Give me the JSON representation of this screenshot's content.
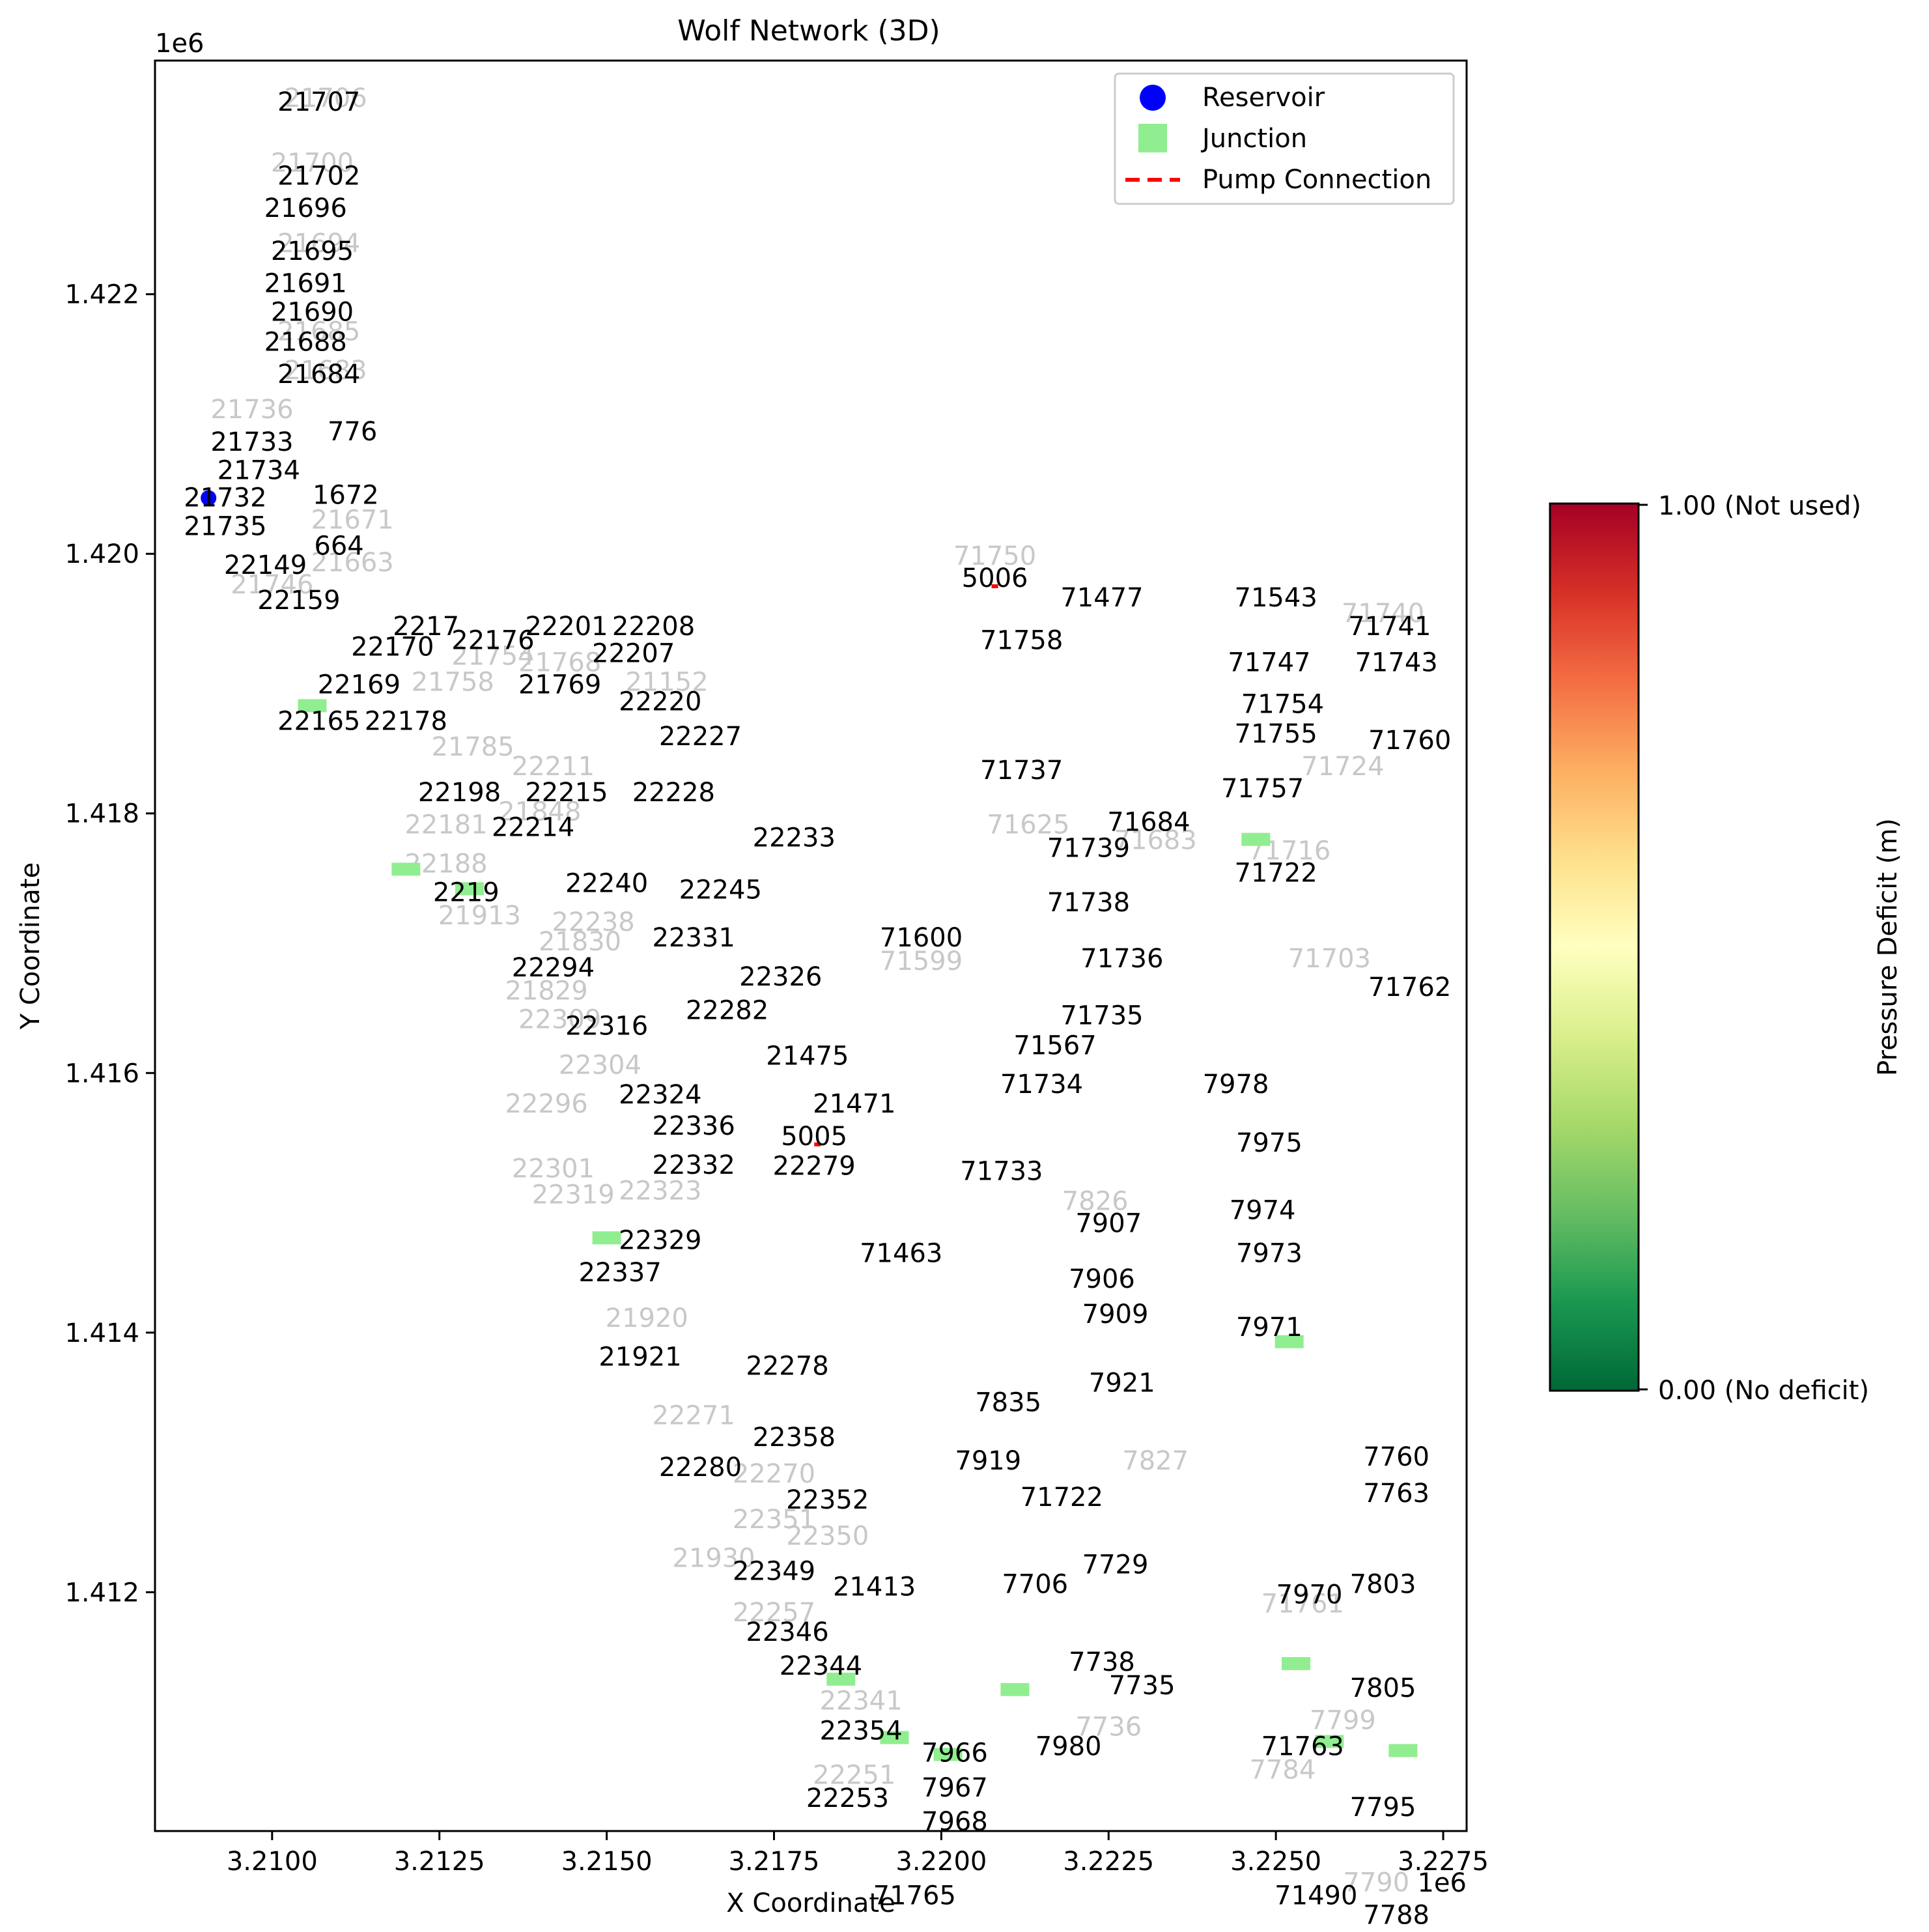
{
  "chart_data": {
    "type": "scatter",
    "title": "Wolf Network (3D)",
    "xlabel": "X Coordinate",
    "ylabel": "Y Coordinate",
    "x_offset_label": "1e6",
    "y_offset_label": "1e6",
    "xlim": [
      3.20825,
      3.22785
    ],
    "ylim": [
      1.41016,
      1.4238
    ],
    "x_ticks": [
      3.21,
      3.2125,
      3.215,
      3.2175,
      3.22,
      3.2225,
      3.225,
      3.2275
    ],
    "x_tick_labels": [
      "3.2100",
      "3.2125",
      "3.2150",
      "3.2175",
      "3.2200",
      "3.2225",
      "3.2250",
      "3.2275"
    ],
    "y_ticks": [
      1.412,
      1.414,
      1.416,
      1.418,
      1.42,
      1.422
    ],
    "y_tick_labels": [
      "1.412",
      "1.414",
      "1.416",
      "1.418",
      "1.420",
      "1.422"
    ],
    "grid": false,
    "legend_position": "upper right",
    "legend": [
      {
        "label": "Reservoir",
        "marker": "circle",
        "color": "#0000ff"
      },
      {
        "label": "Junction",
        "marker": "square",
        "color": "#90ee90"
      },
      {
        "label": "Pump Connection",
        "marker": "dashed-line",
        "color": "#ff0000"
      }
    ],
    "colorbar": {
      "label": "Pressure Deficit (m)",
      "min": 0.0,
      "max": 1.0,
      "tick_labels": [
        "1.00 (Not used)",
        "0.00 (No deficit)"
      ],
      "colormap": "RdYlGn_r",
      "stops": [
        "#006837",
        "#1a9850",
        "#66bd63",
        "#a6d96a",
        "#d9ef8b",
        "#ffffbf",
        "#fee08b",
        "#fdae61",
        "#f46d43",
        "#d73027",
        "#a50026"
      ]
    },
    "reservoirs": [
      {
        "label": "22149",
        "x": 3.20905,
        "y": 1.42043
      }
    ],
    "pump_connections": [
      {
        "label": "5006",
        "x": 3.2208,
        "y": 1.41975
      },
      {
        "label": "5005",
        "x": 3.21815,
        "y": 1.41545
      }
    ],
    "junction_markers": [
      {
        "x": 3.2106,
        "y": 1.41883
      },
      {
        "x": 3.212,
        "y": 1.41757
      },
      {
        "x": 3.21295,
        "y": 1.41742
      },
      {
        "x": 3.215,
        "y": 1.41473
      },
      {
        "x": 3.2185,
        "y": 1.41133
      },
      {
        "x": 3.2193,
        "y": 1.41088
      },
      {
        "x": 3.2201,
        "y": 1.41075
      },
      {
        "x": 3.2211,
        "y": 1.41125
      },
      {
        "x": 3.2247,
        "y": 1.4178
      },
      {
        "x": 3.2252,
        "y": 1.41393
      },
      {
        "x": 3.2258,
        "y": 1.41085
      },
      {
        "x": 3.2269,
        "y": 1.41078
      },
      {
        "x": 3.2253,
        "y": 1.41145
      }
    ],
    "node_labels": [
      {
        "t": "21707",
        "x": 3.2107,
        "y": 1.42347
      },
      {
        "t": "21702",
        "x": 3.2107,
        "y": 1.4229
      },
      {
        "t": "21696",
        "x": 3.2105,
        "y": 1.42265
      },
      {
        "t": "21695",
        "x": 3.2106,
        "y": 1.42232
      },
      {
        "t": "21691",
        "x": 3.2105,
        "y": 1.42207
      },
      {
        "t": "21690",
        "x": 3.2106,
        "y": 1.42185
      },
      {
        "t": "21688",
        "x": 3.2105,
        "y": 1.42162
      },
      {
        "t": "21684",
        "x": 3.2107,
        "y": 1.42137
      },
      {
        "t": "21733",
        "x": 3.2097,
        "y": 1.42085
      },
      {
        "t": "776",
        "x": 3.2112,
        "y": 1.42093
      },
      {
        "t": "21734",
        "x": 3.2098,
        "y": 1.42063
      },
      {
        "t": "21732",
        "x": 3.2093,
        "y": 1.42042
      },
      {
        "t": "1672",
        "x": 3.2111,
        "y": 1.42044
      },
      {
        "t": "21735",
        "x": 3.2093,
        "y": 1.4202
      },
      {
        "t": "664",
        "x": 3.211,
        "y": 1.42005
      },
      {
        "t": "22149",
        "x": 3.2099,
        "y": 1.4199
      },
      {
        "t": "22159",
        "x": 3.2104,
        "y": 1.41963
      },
      {
        "t": "22170",
        "x": 3.2118,
        "y": 1.41927
      },
      {
        "t": "2217",
        "x": 3.2123,
        "y": 1.41943
      },
      {
        "t": "22176",
        "x": 3.2133,
        "y": 1.41932
      },
      {
        "t": "22201",
        "x": 3.2144,
        "y": 1.41943
      },
      {
        "t": "22208",
        "x": 3.2157,
        "y": 1.41943
      },
      {
        "t": "22207",
        "x": 3.2154,
        "y": 1.41922
      },
      {
        "t": "22169",
        "x": 3.2113,
        "y": 1.41898
      },
      {
        "t": "21769",
        "x": 3.2143,
        "y": 1.41898
      },
      {
        "t": "22220",
        "x": 3.2158,
        "y": 1.41885
      },
      {
        "t": "22165",
        "x": 3.2107,
        "y": 1.4187
      },
      {
        "t": "22178",
        "x": 3.212,
        "y": 1.4187
      },
      {
        "t": "22227",
        "x": 3.2164,
        "y": 1.41858
      },
      {
        "t": "22198",
        "x": 3.2128,
        "y": 1.41815
      },
      {
        "t": "22215",
        "x": 3.2144,
        "y": 1.41815
      },
      {
        "t": "22228",
        "x": 3.216,
        "y": 1.41815
      },
      {
        "t": "22214",
        "x": 3.2139,
        "y": 1.41788
      },
      {
        "t": "22233",
        "x": 3.2178,
        "y": 1.4178
      },
      {
        "t": "22240",
        "x": 3.215,
        "y": 1.41745
      },
      {
        "t": "22245",
        "x": 3.2167,
        "y": 1.4174
      },
      {
        "t": "2219",
        "x": 3.2129,
        "y": 1.41738
      },
      {
        "t": "22331",
        "x": 3.2163,
        "y": 1.41703
      },
      {
        "t": "22294",
        "x": 3.2142,
        "y": 1.4168
      },
      {
        "t": "22326",
        "x": 3.2176,
        "y": 1.41673
      },
      {
        "t": "22282",
        "x": 3.2168,
        "y": 1.41647
      },
      {
        "t": "22316",
        "x": 3.215,
        "y": 1.41635
      },
      {
        "t": "21475",
        "x": 3.218,
        "y": 1.41612
      },
      {
        "t": "22324",
        "x": 3.2158,
        "y": 1.41582
      },
      {
        "t": "21471",
        "x": 3.2187,
        "y": 1.41575
      },
      {
        "t": "22336",
        "x": 3.2163,
        "y": 1.41558
      },
      {
        "t": "22279",
        "x": 3.2181,
        "y": 1.41527
      },
      {
        "t": "22332",
        "x": 3.2163,
        "y": 1.41528
      },
      {
        "t": "22329",
        "x": 3.2158,
        "y": 1.4147
      },
      {
        "t": "22337",
        "x": 3.2152,
        "y": 1.41445
      },
      {
        "t": "21921",
        "x": 3.2155,
        "y": 1.4138
      },
      {
        "t": "22278",
        "x": 3.2177,
        "y": 1.41373
      },
      {
        "t": "22358",
        "x": 3.2178,
        "y": 1.41318
      },
      {
        "t": "22280",
        "x": 3.2164,
        "y": 1.41295
      },
      {
        "t": "22352",
        "x": 3.2183,
        "y": 1.4127
      },
      {
        "t": "22349",
        "x": 3.2175,
        "y": 1.41215
      },
      {
        "t": "21413",
        "x": 3.219,
        "y": 1.41203
      },
      {
        "t": "22346",
        "x": 3.2177,
        "y": 1.41168
      },
      {
        "t": "22344",
        "x": 3.2182,
        "y": 1.41142
      },
      {
        "t": "22354",
        "x": 3.2188,
        "y": 1.41092
      },
      {
        "t": "22253",
        "x": 3.2186,
        "y": 1.4104
      },
      {
        "t": "5006",
        "x": 3.2208,
        "y": 1.4198
      },
      {
        "t": "71477",
        "x": 3.2224,
        "y": 1.41965
      },
      {
        "t": "71543",
        "x": 3.225,
        "y": 1.41965
      },
      {
        "t": "71758",
        "x": 3.2212,
        "y": 1.41932
      },
      {
        "t": "71741",
        "x": 3.2267,
        "y": 1.41943
      },
      {
        "t": "71747",
        "x": 3.2249,
        "y": 1.41915
      },
      {
        "t": "71743",
        "x": 3.2268,
        "y": 1.41915
      },
      {
        "t": "71754",
        "x": 3.2251,
        "y": 1.41883
      },
      {
        "t": "71755",
        "x": 3.225,
        "y": 1.4186
      },
      {
        "t": "71760",
        "x": 3.227,
        "y": 1.41855
      },
      {
        "t": "71737",
        "x": 3.2212,
        "y": 1.41832
      },
      {
        "t": "71757",
        "x": 3.2248,
        "y": 1.41818
      },
      {
        "t": "71684",
        "x": 3.2231,
        "y": 1.41792
      },
      {
        "t": "71739",
        "x": 3.2222,
        "y": 1.41772
      },
      {
        "t": "71722",
        "x": 3.225,
        "y": 1.41753
      },
      {
        "t": "71738",
        "x": 3.2222,
        "y": 1.4173
      },
      {
        "t": "71600",
        "x": 3.2197,
        "y": 1.41703
      },
      {
        "t": "71736",
        "x": 3.2227,
        "y": 1.41687
      },
      {
        "t": "71762",
        "x": 3.227,
        "y": 1.41665
      },
      {
        "t": "71735",
        "x": 3.2224,
        "y": 1.41643
      },
      {
        "t": "71567",
        "x": 3.2217,
        "y": 1.4162
      },
      {
        "t": "71734",
        "x": 3.2215,
        "y": 1.4159
      },
      {
        "t": "7978",
        "x": 3.2244,
        "y": 1.4159
      },
      {
        "t": "7975",
        "x": 3.2249,
        "y": 1.41545
      },
      {
        "t": "71733",
        "x": 3.2209,
        "y": 1.41523
      },
      {
        "t": "7974",
        "x": 3.2248,
        "y": 1.41493
      },
      {
        "t": "7907",
        "x": 3.2225,
        "y": 1.41483
      },
      {
        "t": "71463",
        "x": 3.2194,
        "y": 1.4146
      },
      {
        "t": "7973",
        "x": 3.2249,
        "y": 1.4146
      },
      {
        "t": "7906",
        "x": 3.2224,
        "y": 1.4144
      },
      {
        "t": "7909",
        "x": 3.2226,
        "y": 1.41413
      },
      {
        "t": "7971",
        "x": 3.2249,
        "y": 1.41403
      },
      {
        "t": "7921",
        "x": 3.2227,
        "y": 1.4136
      },
      {
        "t": "7835",
        "x": 3.221,
        "y": 1.41345
      },
      {
        "t": "7919",
        "x": 3.2207,
        "y": 1.413
      },
      {
        "t": "7760",
        "x": 3.2268,
        "y": 1.41303
      },
      {
        "t": "71722",
        "x": 3.2218,
        "y": 1.41272
      },
      {
        "t": "7763",
        "x": 3.2268,
        "y": 1.41275
      },
      {
        "t": "7729",
        "x": 3.2226,
        "y": 1.4122
      },
      {
        "t": "7706",
        "x": 3.2214,
        "y": 1.41205
      },
      {
        "t": "7803",
        "x": 3.2266,
        "y": 1.41205
      },
      {
        "t": "7970",
        "x": 3.2255,
        "y": 1.41197
      },
      {
        "t": "7738",
        "x": 3.2224,
        "y": 1.41145
      },
      {
        "t": "7735",
        "x": 3.223,
        "y": 1.41127
      },
      {
        "t": "7805",
        "x": 3.2266,
        "y": 1.41125
      },
      {
        "t": "71763",
        "x": 3.2254,
        "y": 1.4108
      },
      {
        "t": "7980",
        "x": 3.2219,
        "y": 1.4108
      },
      {
        "t": "7966",
        "x": 3.2202,
        "y": 1.41075
      },
      {
        "t": "7967",
        "x": 3.2202,
        "y": 1.41048
      },
      {
        "t": "7968",
        "x": 3.2202,
        "y": 1.41022
      },
      {
        "t": "7795",
        "x": 3.2266,
        "y": 1.41033
      },
      {
        "t": "71490",
        "x": 3.2256,
        "y": 1.40965
      },
      {
        "t": "7788",
        "x": 3.2268,
        "y": 1.4095
      },
      {
        "t": "71765",
        "x": 3.2196,
        "y": 1.40965
      },
      {
        "t": "5005",
        "x": 3.2181,
        "y": 1.4155
      }
    ],
    "faded_labels": [
      {
        "t": "21706",
        "x": 3.2108,
        "y": 1.4235
      },
      {
        "t": "21700",
        "x": 3.2106,
        "y": 1.423
      },
      {
        "t": "21694",
        "x": 3.2107,
        "y": 1.42238
      },
      {
        "t": "21685",
        "x": 3.2107,
        "y": 1.4217
      },
      {
        "t": "21683",
        "x": 3.2108,
        "y": 1.4214
      },
      {
        "t": "21736",
        "x": 3.2097,
        "y": 1.4211
      },
      {
        "t": "21746",
        "x": 3.21,
        "y": 1.41975
      },
      {
        "t": "21671",
        "x": 3.2112,
        "y": 1.42025
      },
      {
        "t": "21663",
        "x": 3.2112,
        "y": 1.41992
      },
      {
        "t": "21758",
        "x": 3.2127,
        "y": 1.419
      },
      {
        "t": "21754",
        "x": 3.2133,
        "y": 1.4192
      },
      {
        "t": "21768",
        "x": 3.2143,
        "y": 1.41915
      },
      {
        "t": "21152",
        "x": 3.2159,
        "y": 1.419
      },
      {
        "t": "21785",
        "x": 3.213,
        "y": 1.4185
      },
      {
        "t": "22211",
        "x": 3.2142,
        "y": 1.41835
      },
      {
        "t": "21848",
        "x": 3.214,
        "y": 1.418
      },
      {
        "t": "22181",
        "x": 3.2126,
        "y": 1.4179
      },
      {
        "t": "22188",
        "x": 3.2126,
        "y": 1.4176
      },
      {
        "t": "21913",
        "x": 3.2131,
        "y": 1.4172
      },
      {
        "t": "22238",
        "x": 3.2148,
        "y": 1.41715
      },
      {
        "t": "21830",
        "x": 3.2146,
        "y": 1.417
      },
      {
        "t": "21829",
        "x": 3.2141,
        "y": 1.41662
      },
      {
        "t": "22309",
        "x": 3.2143,
        "y": 1.4164
      },
      {
        "t": "22304",
        "x": 3.2149,
        "y": 1.41605
      },
      {
        "t": "22296",
        "x": 3.2141,
        "y": 1.41575
      },
      {
        "t": "22301",
        "x": 3.2142,
        "y": 1.41525
      },
      {
        "t": "22319",
        "x": 3.2145,
        "y": 1.41505
      },
      {
        "t": "22323",
        "x": 3.2158,
        "y": 1.41508
      },
      {
        "t": "21920",
        "x": 3.2156,
        "y": 1.4141
      },
      {
        "t": "22271",
        "x": 3.2163,
        "y": 1.41335
      },
      {
        "t": "22270",
        "x": 3.2175,
        "y": 1.4129
      },
      {
        "t": "22351",
        "x": 3.2175,
        "y": 1.41255
      },
      {
        "t": "22350",
        "x": 3.2183,
        "y": 1.41242
      },
      {
        "t": "21930",
        "x": 3.2166,
        "y": 1.41225
      },
      {
        "t": "22257",
        "x": 3.2175,
        "y": 1.41183
      },
      {
        "t": "22341",
        "x": 3.2188,
        "y": 1.41115
      },
      {
        "t": "22251",
        "x": 3.2187,
        "y": 1.41058
      },
      {
        "t": "71750",
        "x": 3.2208,
        "y": 1.41997
      },
      {
        "t": "71740",
        "x": 3.2266,
        "y": 1.41953
      },
      {
        "t": "71724",
        "x": 3.226,
        "y": 1.41835
      },
      {
        "t": "71716",
        "x": 3.2252,
        "y": 1.4177
      },
      {
        "t": "71703",
        "x": 3.2258,
        "y": 1.41687
      },
      {
        "t": "71683",
        "x": 3.2232,
        "y": 1.41778
      },
      {
        "t": "71625",
        "x": 3.2213,
        "y": 1.4179
      },
      {
        "t": "71599",
        "x": 3.2197,
        "y": 1.41685
      },
      {
        "t": "7826",
        "x": 3.2223,
        "y": 1.415
      },
      {
        "t": "7827",
        "x": 3.2232,
        "y": 1.413
      },
      {
        "t": "7736",
        "x": 3.2225,
        "y": 1.41095
      },
      {
        "t": "7784",
        "x": 3.2251,
        "y": 1.41062
      },
      {
        "t": "7790",
        "x": 3.2265,
        "y": 1.40975
      },
      {
        "t": "71761",
        "x": 3.2254,
        "y": 1.4119
      },
      {
        "t": "7799",
        "x": 3.226,
        "y": 1.411
      }
    ]
  }
}
